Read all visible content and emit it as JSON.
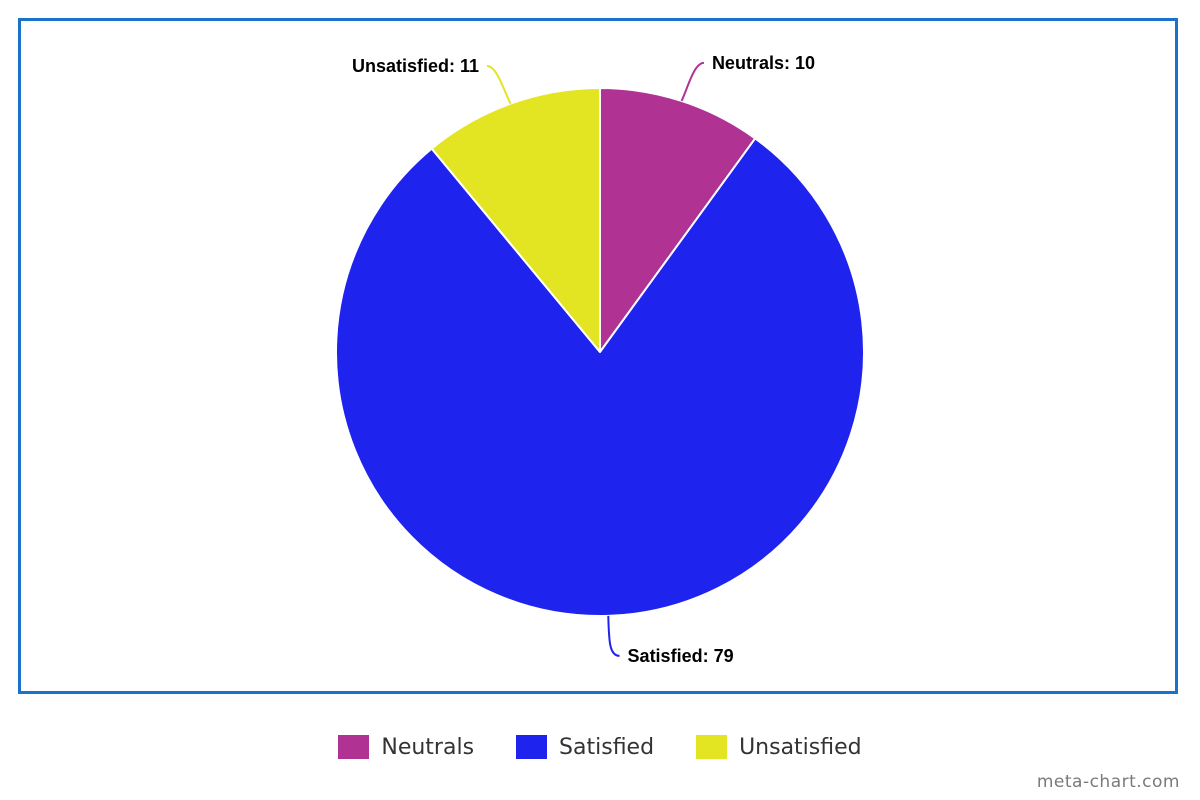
{
  "chart_data": {
    "type": "pie",
    "title": "",
    "categories": [
      "Neutrals",
      "Satisfied",
      "Unsatisfied"
    ],
    "values": [
      10,
      79,
      11
    ],
    "slice_labels": [
      "Neutrals: 10",
      "Satisfied: 79",
      "Unsatisfied: 11"
    ],
    "colors": [
      "#b03292",
      "#1f23ee",
      "#e3e523"
    ],
    "legend": {
      "position": "bottom",
      "entries": [
        "Neutrals",
        "Satisfied",
        "Unsatisfied"
      ]
    }
  },
  "watermark": "meta-chart.com"
}
